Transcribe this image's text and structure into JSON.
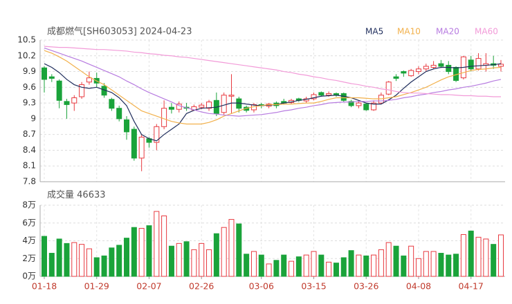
{
  "chart_data": {
    "type": "candlestick",
    "title": "成都燃气[SH603053] 2024-04-23",
    "categories": [
      "01-18",
      null,
      null,
      null,
      null,
      null,
      null,
      "01-29",
      null,
      null,
      null,
      null,
      null,
      null,
      "02-07",
      null,
      null,
      null,
      null,
      null,
      null,
      "02-26",
      null,
      null,
      null,
      null,
      null,
      null,
      null,
      "03-06",
      null,
      null,
      null,
      null,
      null,
      null,
      "03-15",
      null,
      null,
      null,
      null,
      null,
      null,
      "03-26",
      null,
      null,
      null,
      null,
      null,
      null,
      "04-08",
      null,
      null,
      null,
      null,
      null,
      null,
      "04-17",
      null,
      null,
      null,
      null
    ],
    "open": [
      9.97,
      9.8,
      9.72,
      9.33,
      9.3,
      9.42,
      9.7,
      9.77,
      9.62,
      9.37,
      9.2,
      8.98,
      8.8,
      8.25,
      8.62,
      8.55,
      8.85,
      9.22,
      9.18,
      9.22,
      9.17,
      9.22,
      9.2,
      9.35,
      9.12,
      9.43,
      9.38,
      9.22,
      9.17,
      9.27,
      9.24,
      9.3,
      9.33,
      9.31,
      9.38,
      9.34,
      9.38,
      9.5,
      9.45,
      9.48,
      9.48,
      9.33,
      9.25,
      9.28,
      9.17,
      9.3,
      9.47,
      9.8,
      9.9,
      9.82,
      9.9,
      9.95,
      9.98,
      10.05,
      10.02,
      9.98,
      9.78,
      10.12,
      9.95,
      10.02,
      10.05,
      10.0
    ],
    "high": [
      10.0,
      9.85,
      9.75,
      9.38,
      9.45,
      9.7,
      9.9,
      9.88,
      9.68,
      9.4,
      9.25,
      9.05,
      8.85,
      8.7,
      8.65,
      8.9,
      9.35,
      9.3,
      9.33,
      9.3,
      9.27,
      9.3,
      9.36,
      9.5,
      9.5,
      9.85,
      9.42,
      9.25,
      9.3,
      9.3,
      9.3,
      9.33,
      9.38,
      9.38,
      9.4,
      9.42,
      9.5,
      9.52,
      9.52,
      9.5,
      9.5,
      9.36,
      9.35,
      9.3,
      9.35,
      9.5,
      9.72,
      9.85,
      9.92,
      9.95,
      10.0,
      10.05,
      10.1,
      10.12,
      10.1,
      10.0,
      10.2,
      10.2,
      10.25,
      10.25,
      10.2,
      10.12
    ],
    "low": [
      9.5,
      9.7,
      9.2,
      9.0,
      9.15,
      9.38,
      9.65,
      9.6,
      9.4,
      9.15,
      8.95,
      8.6,
      8.2,
      8.0,
      8.45,
      8.4,
      8.8,
      9.1,
      9.12,
      9.15,
      9.15,
      9.18,
      9.15,
      9.05,
      9.08,
      9.1,
      9.12,
      9.12,
      9.12,
      9.2,
      9.2,
      9.2,
      9.27,
      9.28,
      9.32,
      9.3,
      9.35,
      9.42,
      9.42,
      9.42,
      9.32,
      9.22,
      9.2,
      9.15,
      9.15,
      9.28,
      9.45,
      9.72,
      9.8,
      9.8,
      9.85,
      9.9,
      9.95,
      9.97,
      9.85,
      9.7,
      9.75,
      9.9,
      9.92,
      9.9,
      9.95,
      9.9
    ],
    "close": [
      9.75,
      9.77,
      9.35,
      9.27,
      9.4,
      9.65,
      9.78,
      9.68,
      9.45,
      9.2,
      9.0,
      8.75,
      8.25,
      8.65,
      8.55,
      8.85,
      9.2,
      9.18,
      9.28,
      9.2,
      9.23,
      9.26,
      9.32,
      9.1,
      9.45,
      9.45,
      9.2,
      9.16,
      9.27,
      9.25,
      9.28,
      9.25,
      9.3,
      9.35,
      9.35,
      9.38,
      9.46,
      9.45,
      9.48,
      9.45,
      9.35,
      9.25,
      9.3,
      9.17,
      9.3,
      9.45,
      9.7,
      9.77,
      9.87,
      9.92,
      9.95,
      10.0,
      10.02,
      10.0,
      9.9,
      9.73,
      10.18,
      9.95,
      10.15,
      10.05,
      10.02,
      10.04
    ],
    "up_color": "#e8393f",
    "down_color": "#1aa33a",
    "series": [
      {
        "name": "MA5",
        "color": "#1f2d5c",
        "values": [
          10.05,
          9.98,
          9.88,
          9.75,
          9.65,
          9.6,
          9.58,
          9.6,
          9.55,
          9.5,
          9.4,
          9.25,
          8.95,
          8.7,
          8.62,
          8.58,
          8.7,
          8.8,
          8.9,
          9.1,
          9.16,
          9.2,
          9.21,
          9.22,
          9.26,
          9.3,
          9.3,
          9.28,
          9.26,
          9.25,
          9.26,
          9.27,
          9.3,
          9.32,
          9.35,
          9.37,
          9.4,
          9.43,
          9.44,
          9.45,
          9.43,
          9.4,
          9.35,
          9.3,
          9.28,
          9.28,
          9.36,
          9.45,
          9.58,
          9.7,
          9.8,
          9.9,
          9.95,
          9.98,
          9.98,
          9.97,
          9.98,
          10.0,
          10.01,
          10.02,
          10.03,
          10.05
        ]
      },
      {
        "name": "MA10",
        "color": "#f2b04a",
        "values": [
          10.3,
          10.25,
          10.18,
          10.1,
          10.0,
          9.9,
          9.8,
          9.72,
          9.65,
          9.55,
          9.45,
          9.35,
          9.25,
          9.15,
          9.1,
          9.05,
          9.0,
          8.95,
          8.92,
          8.9,
          8.9,
          8.9,
          8.93,
          8.98,
          9.05,
          9.1,
          9.15,
          9.2,
          9.23,
          9.25,
          9.27,
          9.27,
          9.28,
          9.28,
          9.29,
          9.3,
          9.3,
          9.33,
          9.37,
          9.4,
          9.4,
          9.4,
          9.4,
          9.39,
          9.38,
          9.38,
          9.4,
          9.42,
          9.46,
          9.5,
          9.55,
          9.6,
          9.67,
          9.74,
          9.8,
          9.84,
          9.88,
          9.92,
          9.94,
          9.95,
          9.97,
          9.98
        ]
      },
      {
        "name": "MA20",
        "color": "#b77be0",
        "values": [
          10.35,
          10.3,
          10.25,
          10.2,
          10.15,
          10.1,
          10.04,
          9.98,
          9.92,
          9.86,
          9.8,
          9.72,
          9.65,
          9.57,
          9.5,
          9.44,
          9.38,
          9.32,
          9.25,
          9.21,
          9.17,
          9.13,
          9.1,
          9.09,
          9.07,
          9.06,
          9.05,
          9.06,
          9.07,
          9.08,
          9.1,
          9.12,
          9.15,
          9.17,
          9.2,
          9.22,
          9.25,
          9.27,
          9.3,
          9.31,
          9.32,
          9.32,
          9.33,
          9.33,
          9.34,
          9.34,
          9.35,
          9.37,
          9.4,
          9.42,
          9.45,
          9.47,
          9.5,
          9.52,
          9.55,
          9.57,
          9.6,
          9.62,
          9.65,
          9.68,
          9.72,
          9.75
        ]
      },
      {
        "name": "MA60",
        "color": "#f29ad8",
        "values": [
          10.38,
          10.37,
          10.36,
          10.36,
          10.35,
          10.34,
          10.33,
          10.32,
          10.32,
          10.31,
          10.3,
          10.29,
          10.27,
          10.26,
          10.24,
          10.23,
          10.21,
          10.2,
          10.18,
          10.17,
          10.15,
          10.13,
          10.11,
          10.09,
          10.07,
          10.05,
          10.03,
          10.01,
          9.99,
          9.97,
          9.95,
          9.93,
          9.9,
          9.88,
          9.85,
          9.83,
          9.8,
          9.78,
          9.75,
          9.73,
          9.7,
          9.67,
          9.65,
          9.62,
          9.6,
          9.57,
          9.55,
          9.52,
          9.5,
          9.49,
          9.49,
          9.48,
          9.47,
          9.46,
          9.46,
          9.45,
          9.44,
          9.44,
          9.43,
          9.43,
          9.42,
          9.42
        ]
      }
    ],
    "ylim": [
      7.8,
      10.5
    ],
    "yticks": [
      10.5,
      10.2,
      9.9,
      9.6,
      9.3,
      9,
      8.7,
      8.4,
      8.1,
      7.8
    ],
    "grid": true,
    "volume": {
      "title": "成交量",
      "values": [
        45000,
        26000,
        42000,
        37000,
        38000,
        36000,
        31000,
        21000,
        23000,
        32000,
        35000,
        43000,
        55000,
        54000,
        57000,
        73000,
        68000,
        34000,
        37000,
        39000,
        30000,
        37000,
        30000,
        48000,
        55000,
        64000,
        59000,
        25000,
        28000,
        24000,
        14000,
        18000,
        24000,
        17000,
        22000,
        24000,
        28000,
        24000,
        16000,
        15000,
        21000,
        29000,
        24000,
        23000,
        24000,
        30000,
        38000,
        34000,
        23000,
        34000,
        20000,
        28000,
        28000,
        26000,
        24000,
        25000,
        47000,
        51000,
        44000,
        42000,
        36000,
        46633
      ],
      "ylim": [
        0,
        80000
      ],
      "yticks": [
        {
          "value": 80000,
          "label": "8万"
        },
        {
          "value": 60000,
          "label": "6万"
        },
        {
          "value": 40000,
          "label": "4万"
        },
        {
          "value": 20000,
          "label": "2万"
        },
        {
          "value": 0,
          "label": "0万"
        }
      ]
    }
  }
}
